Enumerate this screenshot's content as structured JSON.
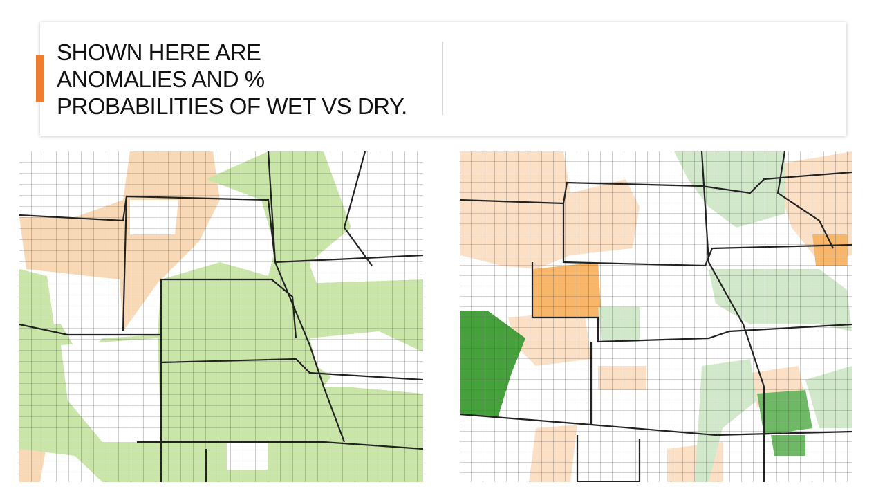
{
  "header": {
    "title_lines": [
      "SHOWN HERE ARE",
      "ANOMALIES AND %",
      "PROBABILITIES OF WET VS DRY."
    ]
  }
}
